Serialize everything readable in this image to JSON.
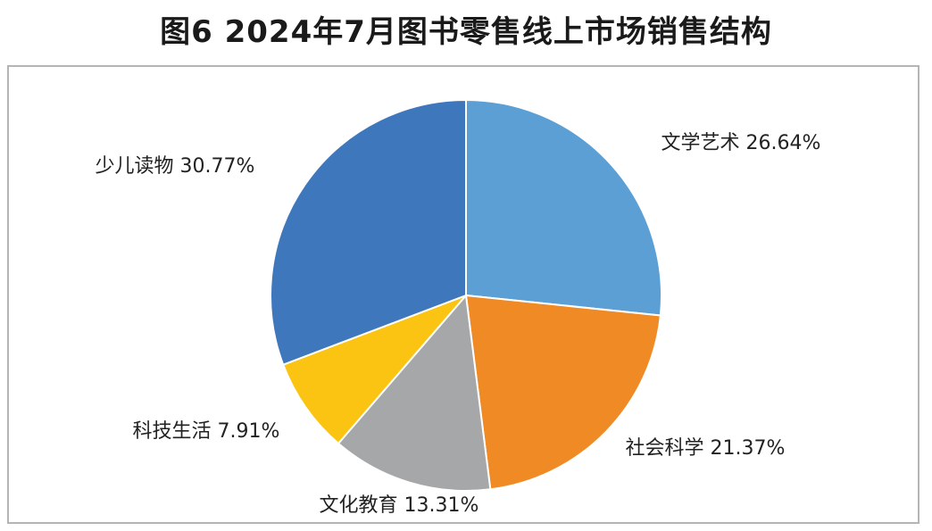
{
  "chart_data": {
    "type": "pie",
    "title": "图6  2024年7月图书零售线上市场销售结构",
    "slices": [
      {
        "label": "文学艺术",
        "value": 26.64,
        "value_label": "26.64%",
        "color": "#5b9fd4"
      },
      {
        "label": "社会科学",
        "value": 21.37,
        "value_label": "21.37%",
        "color": "#ef8a24"
      },
      {
        "label": "文化教育",
        "value": 13.31,
        "value_label": "13.31%",
        "color": "#a5a7a9"
      },
      {
        "label": "科技生活",
        "value": 7.91,
        "value_label": "7.91%",
        "color": "#fbc312"
      },
      {
        "label": "少儿读物",
        "value": 30.77,
        "value_label": "30.77%",
        "color": "#3f77bd"
      }
    ]
  }
}
